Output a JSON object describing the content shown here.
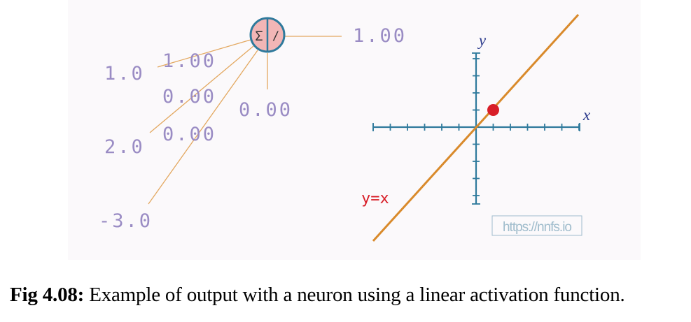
{
  "colors": {
    "number_text": "#9a8cc4",
    "wire": "#e3a860",
    "neuron_fill": "#f2b6b6",
    "neuron_stroke": "#2f7a9c",
    "axis": "#2f7a9c",
    "line": "#d98a2b",
    "point": "#d81e28",
    "equation_text": "#d81e28",
    "watermark": "#9fbccc"
  },
  "neuron": {
    "inputs": [
      "1.0",
      "2.0",
      "-3.0"
    ],
    "weights": [
      "1.00",
      "0.00",
      "0.00"
    ],
    "bias": "0.00",
    "output": "1.00",
    "sum_symbol": "Σ",
    "activation_symbol": "/"
  },
  "graph": {
    "x_label": "x",
    "y_label": "y",
    "equation": "y=x",
    "point": {
      "x": 1,
      "y": 1
    },
    "watermark": "https://nnfs.io"
  },
  "caption": {
    "label": "Fig 4.08:",
    "text": " Example of output with a neuron using a linear activation function."
  }
}
